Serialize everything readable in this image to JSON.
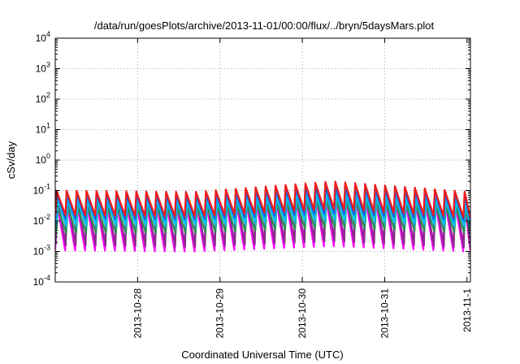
{
  "chart_data": {
    "type": "line",
    "title": "/data/run/goesPlots/archive/2013-11-01/00:00/flux/../bryn/5daysMars.plot",
    "xlabel": "Coordinated Universal Time (UTC)",
    "ylabel": "cSv/day",
    "y_scale": "log",
    "ylim": [
      0.0001,
      10000
    ],
    "xlim": [
      "2013-10-27T00:00",
      "2013-11-01T01:00"
    ],
    "grid": true,
    "legend": "none",
    "y_ticks": [
      {
        "base": "10",
        "exp": "-4",
        "value": 0.0001
      },
      {
        "base": "10",
        "exp": "-3",
        "value": 0.001
      },
      {
        "base": "10",
        "exp": "-2",
        "value": 0.01
      },
      {
        "base": "10",
        "exp": "-1",
        "value": 0.1
      },
      {
        "base": "10",
        "exp": "0",
        "value": 1
      },
      {
        "base": "10",
        "exp": "1",
        "value": 10
      },
      {
        "base": "10",
        "exp": "2",
        "value": 100
      },
      {
        "base": "10",
        "exp": "3",
        "value": 1000
      },
      {
        "base": "10",
        "exp": "4",
        "value": 10000
      }
    ],
    "x_ticks": [
      {
        "label": "2013-10-28",
        "value": "2013-10-28T00:00"
      },
      {
        "label": "2013-10-29",
        "value": "2013-10-29T00:00"
      },
      {
        "label": "2013-10-30",
        "value": "2013-10-30T00:00"
      },
      {
        "label": "2013-10-31",
        "value": "2013-10-31T00:00"
      },
      {
        "label": "2013-11-1",
        "value": "2013-11-01T00:00"
      }
    ],
    "series": [
      {
        "color": "#ff00ff",
        "peak": [
          0.05,
          0.05,
          0.09,
          0.05
        ],
        "trough": [
          0.0011,
          0.001,
          0.0015,
          0.001
        ],
        "period_hours": 2.9,
        "phase_hours": 0.0
      },
      {
        "color": "#8b2a8b",
        "peak": [
          0.07,
          0.06,
          0.12,
          0.06
        ],
        "trough": [
          0.0016,
          0.0014,
          0.0022,
          0.0013
        ],
        "period_hours": 2.9,
        "phase_hours": 0.15
      },
      {
        "color": "#2e8b57",
        "peak": [
          0.03,
          0.03,
          0.05,
          0.03
        ],
        "trough": [
          0.004,
          0.004,
          0.006,
          0.004
        ],
        "period_hours": 2.9,
        "phase_hours": 0.3
      },
      {
        "color": "#20b2aa",
        "peak": [
          0.045,
          0.04,
          0.07,
          0.04
        ],
        "trough": [
          0.006,
          0.006,
          0.009,
          0.006
        ],
        "period_hours": 2.9,
        "phase_hours": 0.45
      },
      {
        "color": "#00bfff",
        "peak": [
          0.06,
          0.05,
          0.09,
          0.05
        ],
        "trough": [
          0.008,
          0.008,
          0.012,
          0.007
        ],
        "period_hours": 2.9,
        "phase_hours": 0.2
      },
      {
        "color": "#1f5fd6",
        "peak": [
          0.08,
          0.07,
          0.14,
          0.07
        ],
        "trough": [
          0.012,
          0.011,
          0.018,
          0.01
        ],
        "period_hours": 2.9,
        "phase_hours": 0.1
      },
      {
        "color": "#ee1c1c",
        "peak": [
          0.1,
          0.09,
          0.2,
          0.09
        ],
        "trough": [
          0.016,
          0.014,
          0.025,
          0.013
        ],
        "period_hours": 2.9,
        "phase_hours": 0.05
      }
    ]
  }
}
